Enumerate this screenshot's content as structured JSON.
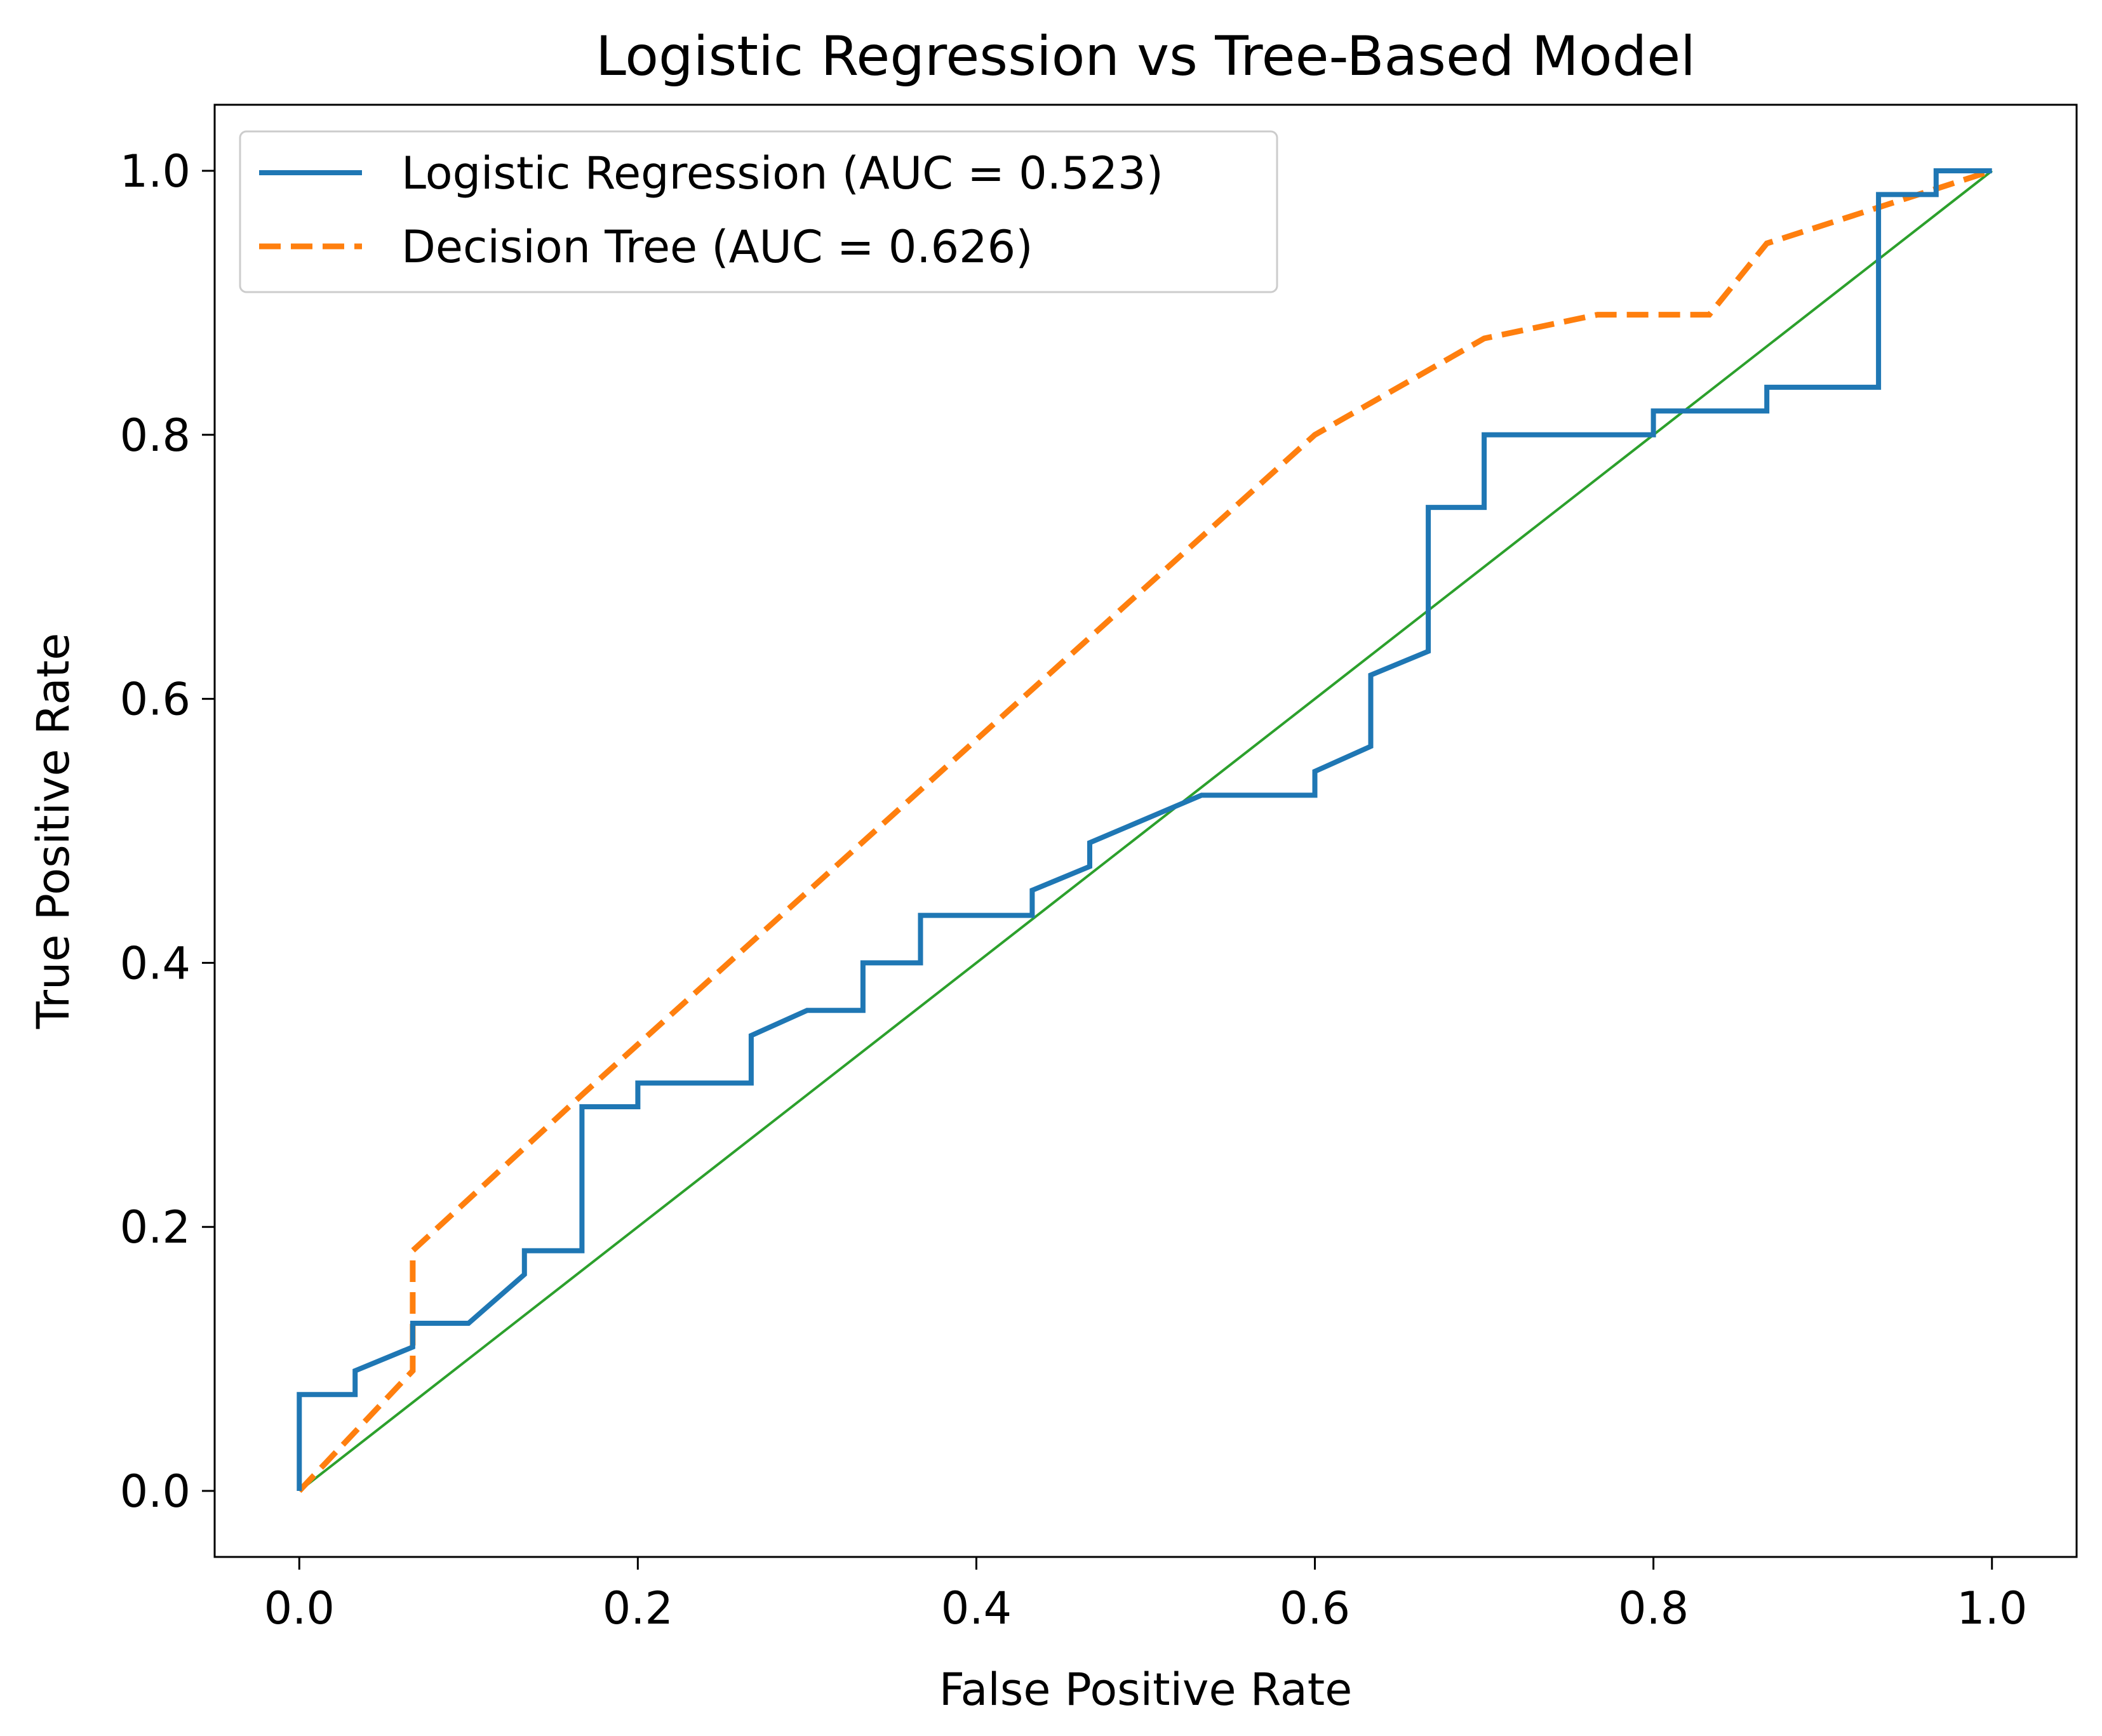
{
  "chart_data": {
    "type": "line",
    "title": "Logistic Regression vs Tree-Based Model",
    "xlabel": "False Positive Rate",
    "ylabel": "True Positive Rate",
    "xlim": [
      -0.05,
      1.05
    ],
    "ylim": [
      -0.05,
      1.05
    ],
    "xticks": [
      "0.0",
      "0.2",
      "0.4",
      "0.6",
      "0.8",
      "1.0"
    ],
    "yticks": [
      "0.0",
      "0.2",
      "0.4",
      "0.6",
      "0.8",
      "1.0"
    ],
    "grid": false,
    "legend_position": "upper-left",
    "series": [
      {
        "name": "Logistic Regression (AUC = 0.523)",
        "color": "#1f77b4",
        "style": "solid",
        "points": [
          [
            0.0,
            0.0
          ],
          [
            0.0,
            0.073
          ],
          [
            0.033,
            0.073
          ],
          [
            0.033,
            0.091
          ],
          [
            0.067,
            0.109
          ],
          [
            0.067,
            0.127
          ],
          [
            0.1,
            0.127
          ],
          [
            0.133,
            0.164
          ],
          [
            0.133,
            0.182
          ],
          [
            0.167,
            0.182
          ],
          [
            0.167,
            0.291
          ],
          [
            0.2,
            0.291
          ],
          [
            0.2,
            0.309
          ],
          [
            0.267,
            0.309
          ],
          [
            0.267,
            0.345
          ],
          [
            0.3,
            0.364
          ],
          [
            0.333,
            0.364
          ],
          [
            0.333,
            0.4
          ],
          [
            0.367,
            0.4
          ],
          [
            0.367,
            0.436
          ],
          [
            0.433,
            0.436
          ],
          [
            0.433,
            0.455
          ],
          [
            0.467,
            0.473
          ],
          [
            0.467,
            0.491
          ],
          [
            0.533,
            0.527
          ],
          [
            0.6,
            0.527
          ],
          [
            0.6,
            0.545
          ],
          [
            0.633,
            0.564
          ],
          [
            0.633,
            0.618
          ],
          [
            0.667,
            0.636
          ],
          [
            0.667,
            0.745
          ],
          [
            0.7,
            0.745
          ],
          [
            0.7,
            0.8
          ],
          [
            0.8,
            0.8
          ],
          [
            0.8,
            0.8
          ],
          [
            0.8,
            0.818
          ],
          [
            0.867,
            0.818
          ],
          [
            0.867,
            0.836
          ],
          [
            0.933,
            0.836
          ],
          [
            0.933,
            0.982
          ],
          [
            0.967,
            0.982
          ],
          [
            0.967,
            1.0
          ],
          [
            1.0,
            1.0
          ]
        ]
      },
      {
        "name": "Decision Tree (AUC = 0.626)",
        "color": "#ff7f0e",
        "style": "dashed",
        "points": [
          [
            0.0,
            0.0
          ],
          [
            0.067,
            0.091
          ],
          [
            0.067,
            0.182
          ],
          [
            0.167,
            0.3
          ],
          [
            0.6,
            0.8
          ],
          [
            0.7,
            0.873
          ],
          [
            0.767,
            0.891
          ],
          [
            0.833,
            0.891
          ],
          [
            0.867,
            0.945
          ],
          [
            1.0,
            1.0
          ]
        ]
      },
      {
        "color": "#2ca02c",
        "style": "solid",
        "points": [
          [
            0.0,
            0.0
          ],
          [
            1.0,
            1.0
          ]
        ]
      }
    ]
  }
}
